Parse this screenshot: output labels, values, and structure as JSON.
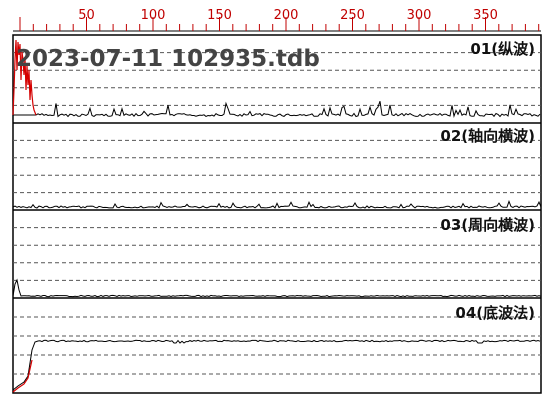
{
  "file_title": "2023-07-11 102935.tdb",
  "ruler": {
    "ticks": [
      "50",
      "100",
      "150",
      "200",
      "250",
      "300",
      "350"
    ],
    "color": "#c00000"
  },
  "channels": [
    {
      "label": "01(纵波)",
      "trace": "longitudinal-wave"
    },
    {
      "label": "02(轴向横波)",
      "trace": "axial-shear-wave"
    },
    {
      "label": "03(周向横波)",
      "trace": "circumferential-shear-wave"
    },
    {
      "label": "04(底波法)",
      "trace": "bottom-wave-method"
    }
  ],
  "colors": {
    "trace": "#000000",
    "gate": "#d40000",
    "grid": "#555555",
    "frame": "#000000"
  }
}
